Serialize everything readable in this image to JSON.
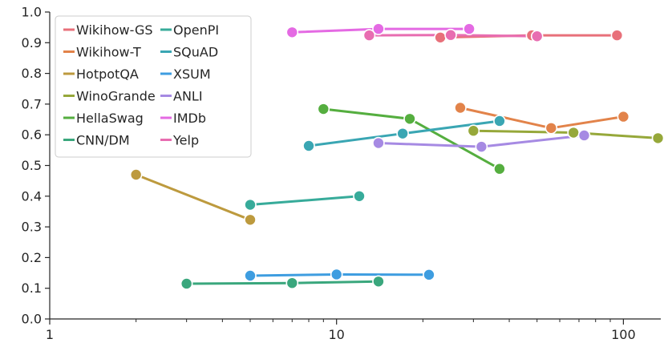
{
  "chart_data": {
    "type": "line",
    "title": "",
    "xlabel": "",
    "ylabel": "",
    "xscale": "log",
    "xlim": [
      1,
      135
    ],
    "ylim": [
      0,
      1.0
    ],
    "x_ticks": [
      1,
      10,
      100
    ],
    "x_tick_labels": [
      "1",
      "10",
      "100"
    ],
    "y_ticks": [
      0,
      0.1,
      0.2,
      0.3,
      0.4,
      0.5,
      0.6,
      0.7,
      0.8,
      0.9,
      1.0
    ],
    "y_tick_labels": [
      "0.0",
      "0.1",
      "0.2",
      "0.3",
      "0.4",
      "0.5",
      "0.6",
      "0.7",
      "0.8",
      "0.9",
      "1.0"
    ],
    "grid": false,
    "legend_position": "top-left",
    "legend_columns": 2,
    "series": [
      {
        "name": "Wikihow-GS",
        "color": "#e8707a",
        "x": [
          23,
          48,
          95
        ],
        "y": [
          0.917,
          0.924,
          0.924
        ]
      },
      {
        "name": "Wikihow-T",
        "color": "#e2834a",
        "x": [
          27,
          56,
          100
        ],
        "y": [
          0.688,
          0.622,
          0.659
        ]
      },
      {
        "name": "HotpotQA",
        "color": "#bd9a3e",
        "x": [
          2,
          5
        ],
        "y": [
          0.47,
          0.323
        ]
      },
      {
        "name": "WinoGrande",
        "color": "#96a83a",
        "x": [
          30,
          67,
          132
        ],
        "y": [
          0.613,
          0.607,
          0.589
        ]
      },
      {
        "name": "HellaSwag",
        "color": "#55ae3f",
        "x": [
          9,
          18,
          37
        ],
        "y": [
          0.684,
          0.652,
          0.489
        ]
      },
      {
        "name": "CNN/DM",
        "color": "#3aa77d",
        "x": [
          3,
          7,
          14
        ],
        "y": [
          0.115,
          0.117,
          0.122
        ]
      },
      {
        "name": "OpenPI",
        "color": "#37ab9a",
        "x": [
          5,
          12
        ],
        "y": [
          0.372,
          0.4
        ]
      },
      {
        "name": "SQuAD",
        "color": "#3aa6b3",
        "x": [
          8,
          17,
          37
        ],
        "y": [
          0.564,
          0.604,
          0.645
        ]
      },
      {
        "name": "XSUM",
        "color": "#3e9de0",
        "x": [
          5,
          10,
          21
        ],
        "y": [
          0.141,
          0.145,
          0.144
        ]
      },
      {
        "name": "ANLI",
        "color": "#a68ae3",
        "x": [
          14,
          32,
          73
        ],
        "y": [
          0.573,
          0.561,
          0.598
        ]
      },
      {
        "name": "IMDb",
        "color": "#e46ae3",
        "x": [
          7,
          14,
          29
        ],
        "y": [
          0.934,
          0.945,
          0.945
        ]
      },
      {
        "name": "Yelp",
        "color": "#e86db1",
        "x": [
          13,
          25,
          50
        ],
        "y": [
          0.924,
          0.925,
          0.921
        ]
      }
    ]
  }
}
